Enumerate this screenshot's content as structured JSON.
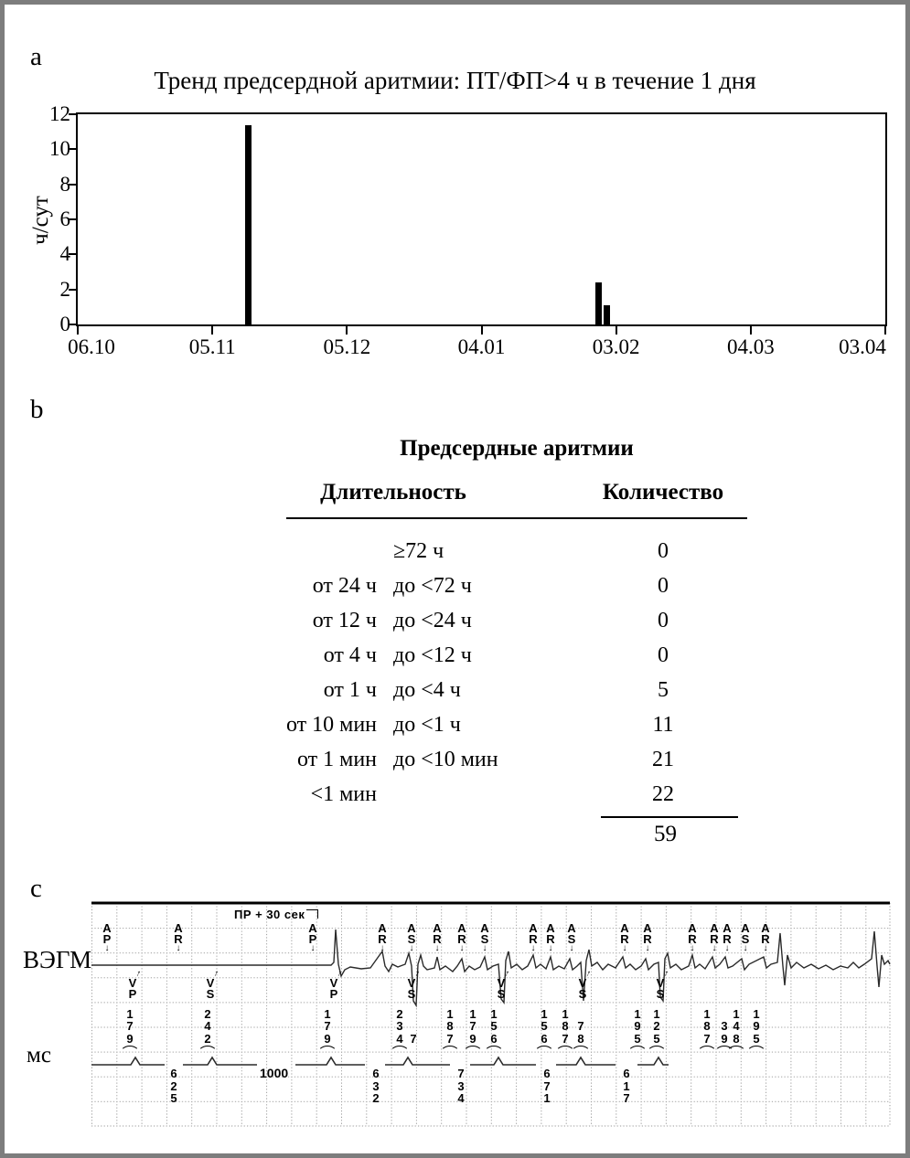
{
  "panels": {
    "a_label": "a",
    "b_label": "b",
    "c_label": "c"
  },
  "chart_data": {
    "type": "bar",
    "title": "Тренд предсердной аритмии: ПТ/ФП>4 ч в течение 1 дня",
    "xlabel": "",
    "ylabel": "ч/сут",
    "x_tick_labels": [
      "06.10",
      "05.11",
      "05.12",
      "04.01",
      "03.02",
      "04.03",
      "03.04"
    ],
    "y_ticks": [
      0,
      2,
      4,
      6,
      8,
      10,
      12
    ],
    "ylim": [
      0,
      12
    ],
    "grid": false,
    "bars": [
      {
        "pos": 1.27,
        "value": 11.4
      },
      {
        "pos": 3.87,
        "value": 2.4
      },
      {
        "pos": 3.93,
        "value": 1.1
      }
    ],
    "pos_note": "pos is in x-axis tick-index units, 0 = 06.10 ... 6 = 03.04"
  },
  "table": {
    "title": "Предсердные аритмии",
    "col_headers": [
      "Длительность",
      "Количество"
    ],
    "rows": [
      {
        "from": "",
        "to": "≥72 ч",
        "count": "0"
      },
      {
        "from": "от 24 ч",
        "to": "до <72 ч",
        "count": "0"
      },
      {
        "from": "от 12 ч",
        "to": "до <24 ч",
        "count": "0"
      },
      {
        "from": "от 4 ч",
        "to": "до <12 ч",
        "count": "0"
      },
      {
        "from": "от 1 ч",
        "to": "до <4 ч",
        "count": "5"
      },
      {
        "from": "от 10 мин",
        "to": "до <1 ч",
        "count": "11"
      },
      {
        "from": "от 1 мин",
        "to": "до <10 мин",
        "count": "21"
      },
      {
        "from": "<1 мин",
        "to": "",
        "count": "22"
      }
    ],
    "total": "59"
  },
  "ecg": {
    "lead_label": "ВЭГМ",
    "ms_label": "мс",
    "caption": "ПР + 30 сек",
    "ms_value": "1000",
    "a_markers": [
      {
        "x": 112,
        "t": "AP"
      },
      {
        "x": 190,
        "t": "AR"
      },
      {
        "x": 337,
        "t": "AP"
      },
      {
        "x": 413,
        "t": "AR"
      },
      {
        "x": 445,
        "t": "AS"
      },
      {
        "x": 473,
        "t": "AR"
      },
      {
        "x": 500,
        "t": "AR"
      },
      {
        "x": 525,
        "t": "AS"
      },
      {
        "x": 578,
        "t": "AR"
      },
      {
        "x": 597,
        "t": "AR"
      },
      {
        "x": 620,
        "t": "AS"
      },
      {
        "x": 678,
        "t": "AR"
      },
      {
        "x": 703,
        "t": "AR"
      },
      {
        "x": 752,
        "t": "AR"
      },
      {
        "x": 776,
        "t": "AR"
      },
      {
        "x": 790,
        "t": "AR"
      },
      {
        "x": 810,
        "t": "AS"
      },
      {
        "x": 832,
        "t": "AR"
      }
    ],
    "v_markers": [
      {
        "x": 140,
        "t": "VP"
      },
      {
        "x": 225,
        "t": "VS"
      },
      {
        "x": 360,
        "t": "VP"
      },
      {
        "x": 445,
        "t": "VS"
      },
      {
        "x": 543,
        "t": "VS"
      },
      {
        "x": 632,
        "t": "VS"
      },
      {
        "x": 717,
        "t": "VS"
      }
    ],
    "a_intervals": [
      {
        "x": 137,
        "v": "179"
      },
      {
        "x": 222,
        "v": "242"
      },
      {
        "x": 353,
        "v": "179"
      },
      {
        "x": 432,
        "v": "234"
      },
      {
        "x": 447,
        "v": "7"
      },
      {
        "x": 487,
        "v": "187"
      },
      {
        "x": 512,
        "v": "179"
      },
      {
        "x": 535,
        "v": "156"
      },
      {
        "x": 590,
        "v": "156"
      },
      {
        "x": 613,
        "v": "187"
      },
      {
        "x": 630,
        "v": "78"
      },
      {
        "x": 692,
        "v": "195"
      },
      {
        "x": 713,
        "v": "125"
      },
      {
        "x": 768,
        "v": "187"
      },
      {
        "x": 787,
        "v": "39"
      },
      {
        "x": 800,
        "v": "148"
      },
      {
        "x": 822,
        "v": "195"
      }
    ],
    "v_intervals": [
      {
        "x": 185,
        "v": "625"
      },
      {
        "x": 406,
        "v": "632"
      },
      {
        "x": 499,
        "v": "734"
      },
      {
        "x": 593,
        "v": "671"
      },
      {
        "x": 680,
        "v": "617"
      }
    ]
  }
}
